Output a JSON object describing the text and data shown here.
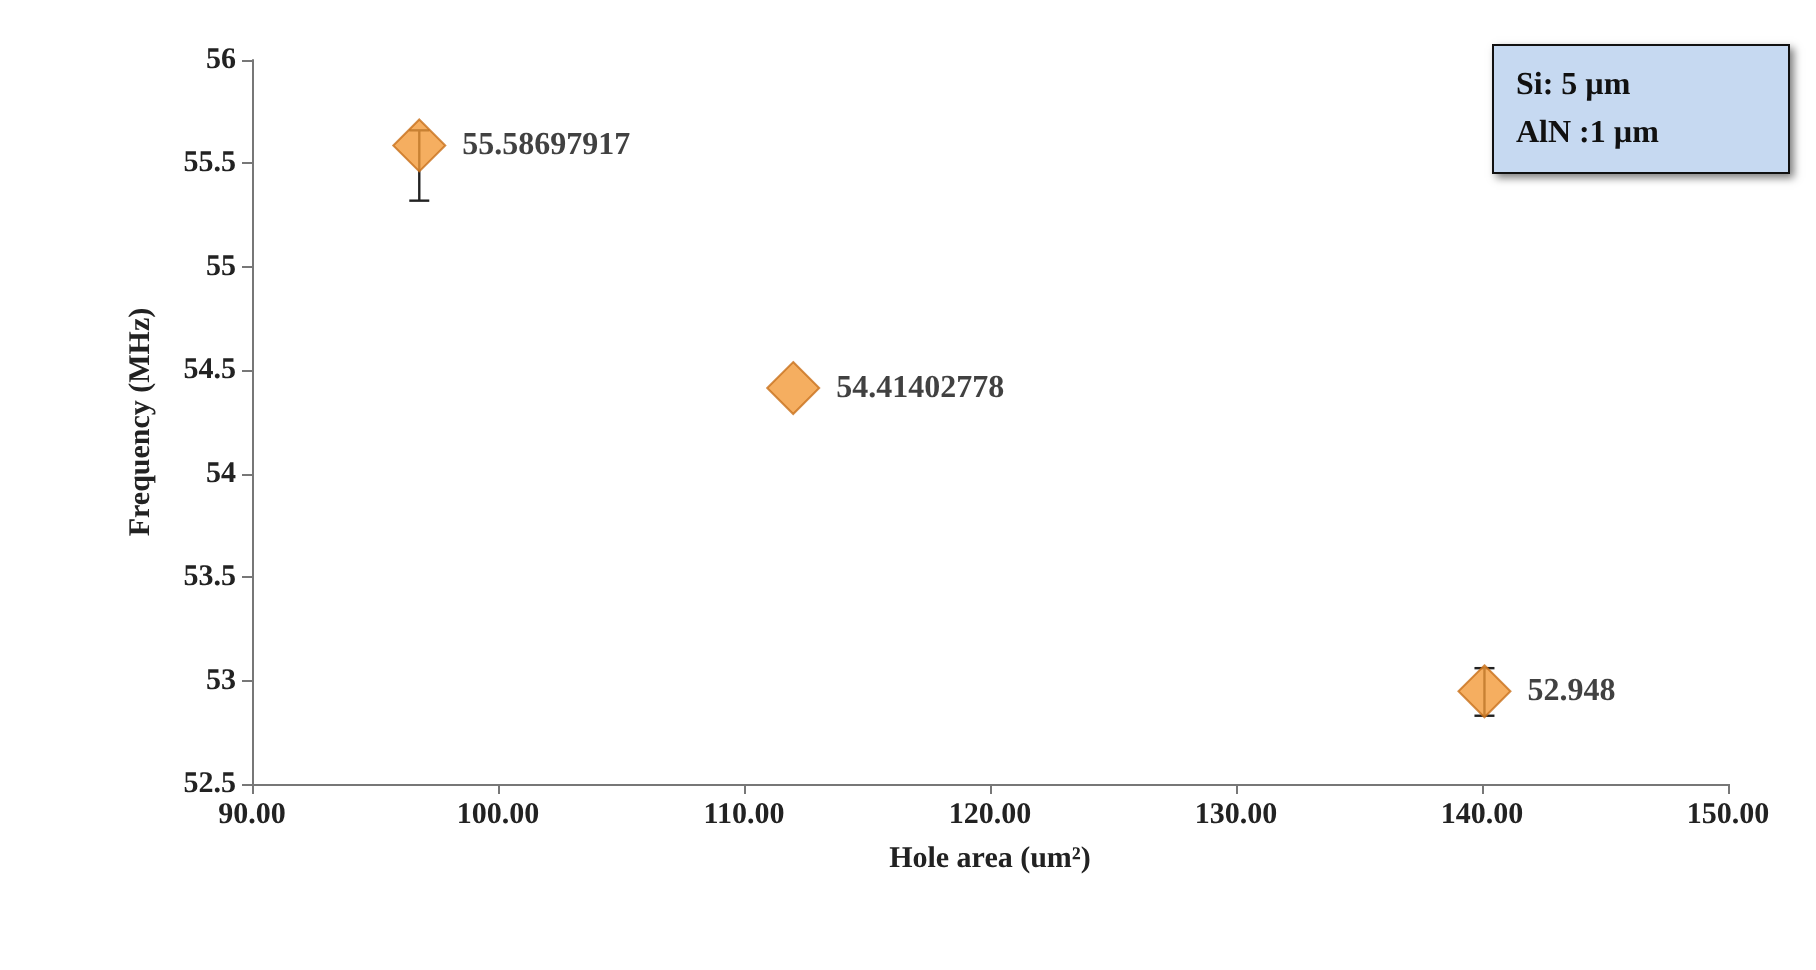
{
  "chart_data": {
    "type": "scatter",
    "xlabel": "Hole area (um²)",
    "ylabel": "Frequency (MHz)",
    "x": [
      96.8,
      112.0,
      140.1
    ],
    "values": [
      55.58697917,
      54.41402778,
      52.948
    ],
    "errors": [
      [
        55.32,
        55.66
      ],
      null,
      [
        52.83,
        53.06
      ]
    ],
    "color": "#f39a38",
    "marker": "diamond",
    "data_labels": true,
    "xlim": [
      90,
      150
    ],
    "xticks": [
      {
        "value": 90,
        "label": "90.00"
      },
      {
        "value": 100,
        "label": "100.00"
      },
      {
        "value": 110,
        "label": "110.00"
      },
      {
        "value": 120,
        "label": "120.00"
      },
      {
        "value": 130,
        "label": "130.00"
      },
      {
        "value": 140,
        "label": "140.00"
      },
      {
        "value": 150,
        "label": "150.00"
      }
    ],
    "ylim": [
      52.5,
      56
    ],
    "yticks": [
      52.5,
      53,
      53.5,
      54,
      54.5,
      55,
      55.5,
      56
    ],
    "annotations": [
      "Si: 5 µm\nAlN :1 µm"
    ]
  }
}
